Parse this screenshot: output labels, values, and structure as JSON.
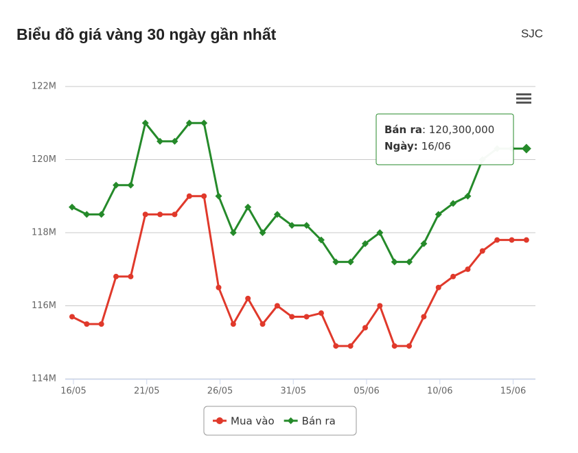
{
  "chart_data": {
    "type": "line",
    "title": "Biểu đồ giá vàng 30 ngày gần nhất",
    "subtitle": "SJC",
    "categories": [
      "16/05",
      null,
      null,
      null,
      null,
      "21/05",
      null,
      null,
      null,
      null,
      "26/05",
      null,
      null,
      null,
      null,
      "31/05",
      null,
      null,
      null,
      null,
      "05/06",
      null,
      null,
      null,
      null,
      "10/06",
      null,
      null,
      null,
      null,
      "15/06",
      null
    ],
    "series": [
      {
        "name": "Mua vào",
        "color": "#e0392b",
        "marker": "circle",
        "values": [
          115.7,
          115.5,
          115.5,
          116.8,
          116.8,
          118.5,
          118.5,
          118.5,
          119.0,
          119.0,
          116.5,
          115.5,
          116.2,
          115.5,
          116.0,
          115.7,
          115.7,
          115.8,
          114.9,
          114.9,
          115.4,
          116.0,
          114.9,
          114.9,
          115.7,
          116.5,
          116.8,
          117.0,
          117.5,
          117.8,
          117.8,
          117.8
        ]
      },
      {
        "name": "Bán ra",
        "color": "#258a2a",
        "marker": "diamond",
        "values": [
          118.7,
          118.5,
          118.5,
          119.3,
          119.3,
          121.0,
          120.5,
          120.5,
          121.0,
          121.0,
          119.0,
          118.0,
          118.7,
          118.0,
          118.5,
          118.2,
          118.2,
          117.8,
          117.2,
          117.2,
          117.7,
          118.0,
          117.2,
          117.2,
          117.7,
          118.5,
          118.8,
          119.0,
          120.0,
          120.3,
          120.3,
          120.3
        ]
      }
    ],
    "ylim": [
      114,
      122
    ],
    "yticks": [
      {
        "value": 114,
        "label": "114M"
      },
      {
        "value": 116,
        "label": "116M"
      },
      {
        "value": 118,
        "label": "118M"
      },
      {
        "value": 120,
        "label": "120M"
      },
      {
        "value": 122,
        "label": "122M"
      }
    ],
    "grid": true,
    "legend": "bottom",
    "tooltip": {
      "series": "Bán ra",
      "value": ": 120,300,000",
      "date_label": "Ngày:",
      "date": "16/06"
    }
  }
}
